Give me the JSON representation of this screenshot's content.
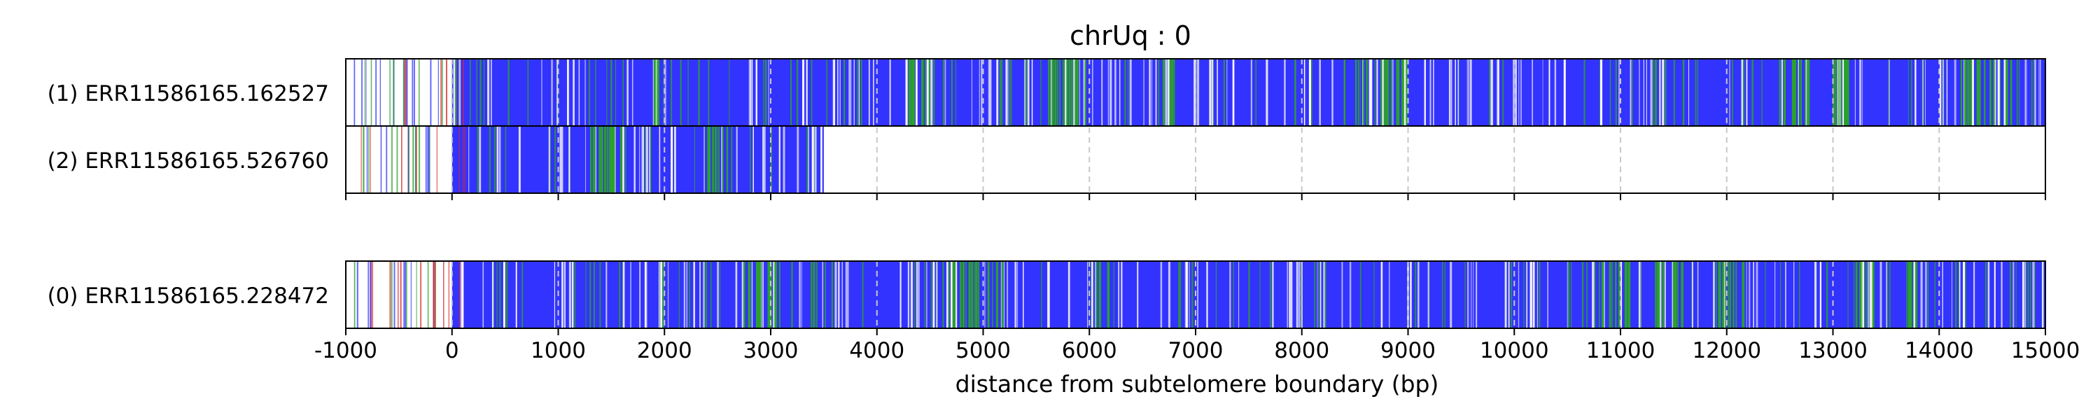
{
  "chart_data": {
    "type": "heatmap",
    "title": "chrUq : 0",
    "xlabel": "distance from subtelomere boundary (bp)",
    "ylabel": "",
    "xlim": [
      -1000,
      15000
    ],
    "xticks": [
      -1000,
      0,
      1000,
      2000,
      3000,
      4000,
      5000,
      6000,
      7000,
      8000,
      9000,
      10000,
      11000,
      12000,
      13000,
      14000,
      15000
    ],
    "vertical_gridlines": "dashed at each tick",
    "colors": {
      "primary": "#3333ff",
      "secondary": "#2ca02c",
      "sparse_marks": [
        "#2ca02c",
        "#3333ff",
        "#d62728"
      ],
      "gap": "#ffffff",
      "gridline": "#c8c8c8"
    },
    "groups": [
      {
        "tracks": [
          {
            "label": "(1) ERR11586165.162527",
            "sparse_range": [
              -1000,
              0
            ],
            "dense_range": [
              0,
              15000
            ],
            "green_regions": [
              [
                1900,
                2000
              ],
              [
                4300,
                4500
              ],
              [
                5600,
                6000
              ],
              [
                6600,
                6800
              ],
              [
                8400,
                9000
              ],
              [
                12500,
                12800
              ],
              [
                13000,
                13200
              ],
              [
                14200,
                14700
              ]
            ]
          },
          {
            "label": "(2) ERR11586165.526760",
            "sparse_range": [
              -1000,
              0
            ],
            "dense_range": [
              0,
              3500
            ],
            "green_regions": [
              [
                1300,
                1600
              ],
              [
                2400,
                2600
              ]
            ]
          }
        ]
      },
      {
        "tracks": [
          {
            "label": "(0) ERR11586165.228472",
            "sparse_range": [
              -1000,
              0
            ],
            "dense_range": [
              0,
              15000
            ],
            "green_regions": [
              [
                2700,
                3100
              ],
              [
                4600,
                5200
              ],
              [
                6000,
                6200
              ],
              [
                10800,
                11100
              ],
              [
                11300,
                11600
              ],
              [
                11900,
                12200
              ],
              [
                13200,
                13400
              ],
              [
                13600,
                13800
              ]
            ]
          }
        ]
      }
    ]
  }
}
